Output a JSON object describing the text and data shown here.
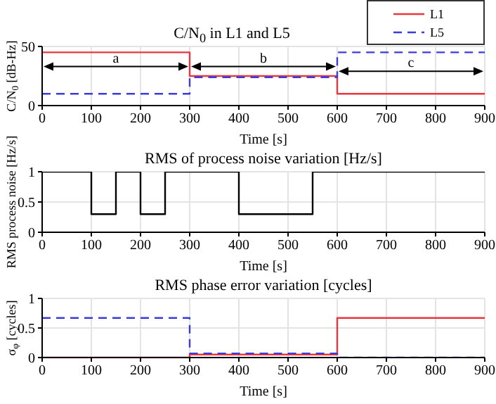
{
  "chart_data": [
    {
      "type": "step",
      "title": "C/N$_{0}$ in L1 and L5",
      "xlabel": "Time [s]",
      "ylabel": "C/N$_{0}$ [dB-Hz]",
      "xlim": [
        0,
        900
      ],
      "xticks": [
        0,
        100,
        200,
        300,
        400,
        500,
        600,
        700,
        800,
        900
      ],
      "ylim": [
        0,
        50
      ],
      "yticks": [
        0,
        50
      ],
      "grid": true,
      "legend": "top right",
      "series": [
        {
          "name": "L1",
          "color": "#e8383d",
          "line_style": "solid",
          "x": [
            0,
            300,
            600,
            900
          ],
          "values": [
            45,
            25,
            10,
            10
          ]
        },
        {
          "name": "L5",
          "color": "#3b3be0",
          "line_style": "dashed",
          "x": [
            0,
            300,
            600,
            900
          ],
          "values": [
            10,
            24,
            45,
            45
          ]
        }
      ],
      "annotations": [
        "a",
        "b",
        "c"
      ]
    },
    {
      "type": "step",
      "title": "RMS of process noise variation [Hz/s]",
      "xlabel": "Time [s]",
      "ylabel": "RMS process noise [Hz/s]",
      "xlim": [
        0,
        900
      ],
      "xticks": [
        0,
        100,
        200,
        300,
        400,
        500,
        600,
        700,
        800,
        900
      ],
      "ylim": [
        0,
        1
      ],
      "yticks": [
        0,
        0.5,
        1
      ],
      "grid": true,
      "series": [
        {
          "color": "#000000",
          "line_style": "solid",
          "x": [
            0,
            100,
            150,
            200,
            250,
            400,
            550,
            900
          ],
          "values": [
            1,
            0.3,
            1,
            0.3,
            1,
            0.3,
            1,
            1
          ]
        }
      ]
    },
    {
      "type": "step",
      "title": "RMS phase error variation [cycles]",
      "xlabel": "Time [s]",
      "ylabel": "σ$_{φ}$ [cycles]",
      "xlim": [
        0,
        900
      ],
      "xticks": [
        0,
        100,
        200,
        300,
        400,
        500,
        600,
        700,
        800,
        900
      ],
      "ylim": [
        0,
        1
      ],
      "yticks": [
        0,
        0.5,
        1
      ],
      "grid": true,
      "series": [
        {
          "color": "#e8383d",
          "line_style": "solid",
          "x": [
            0,
            300,
            600,
            900
          ],
          "values": [
            0,
            0.05,
            0.67,
            0.67
          ]
        },
        {
          "color": "#3b3be0",
          "line_style": "dashed",
          "x": [
            0,
            300,
            600,
            900
          ],
          "values": [
            0.67,
            0.07,
            0,
            0
          ]
        }
      ]
    }
  ]
}
